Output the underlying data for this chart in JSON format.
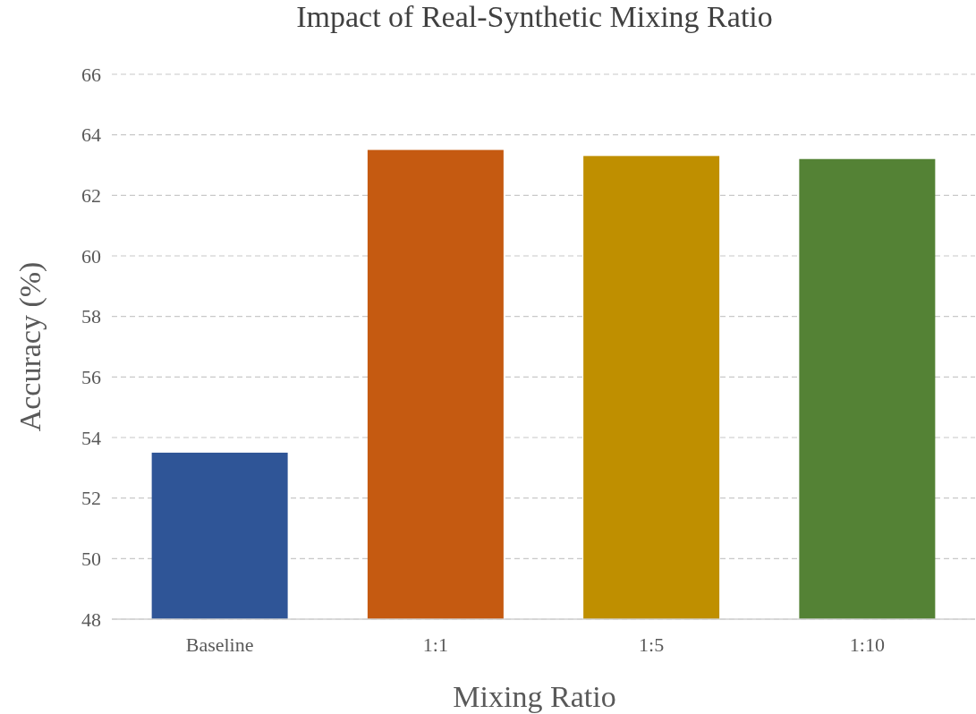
{
  "chart_data": {
    "type": "bar",
    "title": "Impact of Real-Synthetic Mixing Ratio",
    "xlabel": "Mixing Ratio",
    "ylabel": "Accuracy (%)",
    "categories": [
      "Baseline",
      "1:1",
      "1:5",
      "1:10"
    ],
    "values": [
      53.5,
      63.5,
      63.3,
      63.2
    ],
    "colors": [
      "#2f5597",
      "#c55a11",
      "#bf8f00",
      "#548235"
    ],
    "ylim": [
      48,
      66
    ],
    "yticks": [
      48,
      50,
      52,
      54,
      56,
      58,
      60,
      62,
      64,
      66
    ],
    "grid": "y"
  }
}
